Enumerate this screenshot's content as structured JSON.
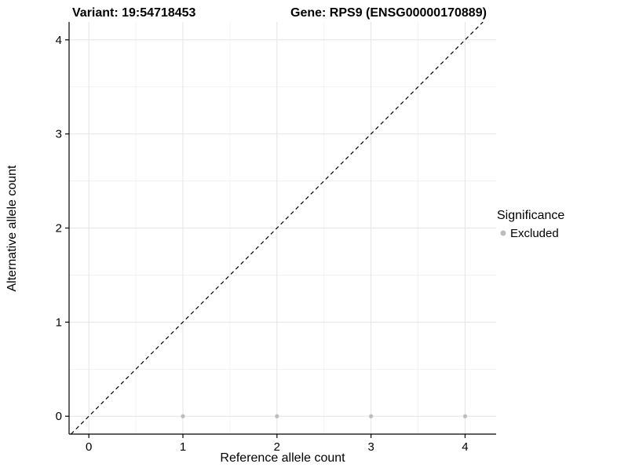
{
  "chart_data": {
    "type": "scatter",
    "titles": {
      "left": "Variant: 19:54718453",
      "right": "Gene: RPS9 (ENSG00000170889)"
    },
    "xlabel": "Reference allele count",
    "ylabel": "Alternative allele count",
    "xlim": [
      -0.21,
      4.33
    ],
    "ylim": [
      -0.19,
      4.19
    ],
    "xticks": [
      0,
      1,
      2,
      3,
      4
    ],
    "yticks": [
      0,
      1,
      2,
      3,
      4
    ],
    "minor_gridlines_x": [
      0.5,
      1.5,
      2.5,
      3.5
    ],
    "minor_gridlines_y": [
      0.5,
      1.5,
      2.5,
      3.5
    ],
    "grid": "on",
    "identity_line": {
      "style": "dashed",
      "slope": 1,
      "intercept": 0,
      "color": "#000000"
    },
    "series": [
      {
        "name": "Excluded",
        "color": "#bdbdbd",
        "points": [
          [
            1,
            0
          ],
          [
            2,
            0
          ],
          [
            3,
            0
          ],
          [
            4,
            0
          ]
        ]
      }
    ],
    "legend": {
      "title": "Significance",
      "position": "right",
      "items": [
        {
          "label": "Excluded",
          "color": "#bdbdbd"
        }
      ]
    },
    "colors": {
      "major_grid": "#e4e4e4",
      "minor_grid": "#f1f1f1",
      "axis": "#000000",
      "tick_text": "#000000",
      "background": "#ffffff"
    }
  }
}
